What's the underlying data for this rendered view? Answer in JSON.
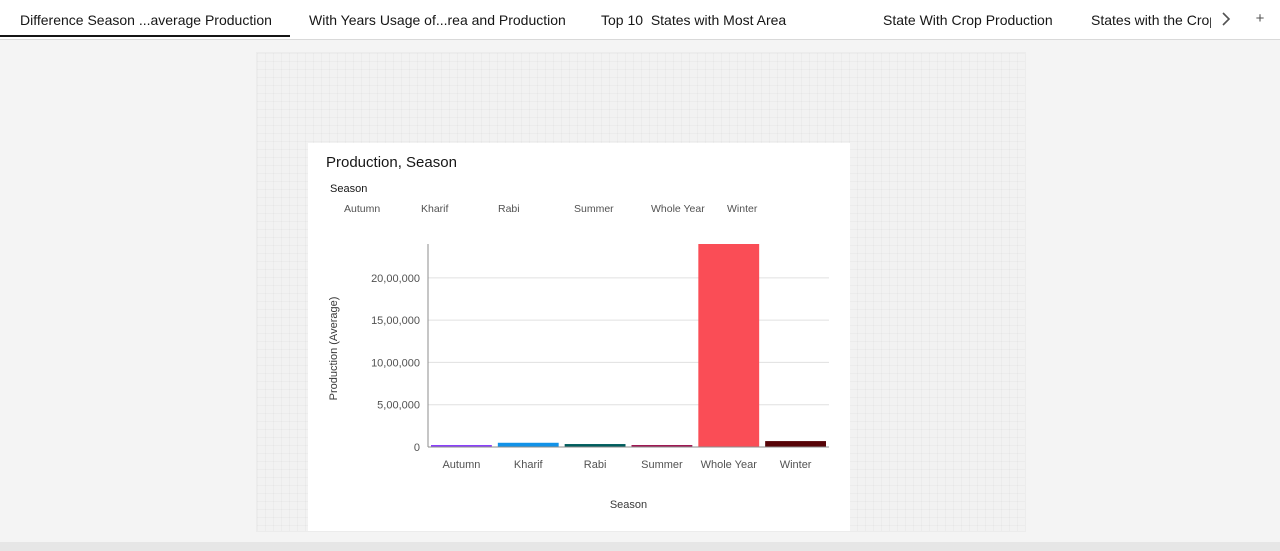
{
  "tabs": [
    {
      "label": "Difference Season ...average Production",
      "active": true
    },
    {
      "label": "With Years Usage of...rea and Production",
      "active": false
    },
    {
      "label": "Top 10  States with Most Area",
      "active": false
    },
    {
      "label": "State With Crop Production",
      "active": false
    },
    {
      "label": "States with the Crop",
      "active": false
    }
  ],
  "tab_controls": {
    "next_icon": "chevron-right-icon",
    "add_icon": "plus-icon",
    "add_label": "+"
  },
  "widget": {
    "title": "Production, Season",
    "legend_title": "Season",
    "legend": [
      "Autumn",
      "Kharif",
      "Rabi",
      "Summer",
      "Whole Year",
      "Winter"
    ]
  },
  "chart_data": {
    "type": "bar",
    "title": "Production, Season",
    "xlabel": "Season",
    "ylabel": "Production (Average)",
    "categories": [
      "Autumn",
      "Kharif",
      "Rabi",
      "Summer",
      "Whole Year",
      "Winter"
    ],
    "values": [
      12000,
      50000,
      35000,
      8000,
      2400000,
      70000
    ],
    "colors": [
      "#8a3ffc",
      "#1192e8",
      "#005d5d",
      "#9f1853",
      "#fa4d56",
      "#570408"
    ],
    "ylim": [
      0,
      2400000
    ],
    "yticks": [
      0,
      500000,
      1000000,
      1500000,
      2000000
    ],
    "ytick_labels": [
      "0",
      "5,00,000",
      "10,00,000",
      "15,00,000",
      "20,00,000"
    ],
    "grid": true,
    "legend_position": "top"
  }
}
